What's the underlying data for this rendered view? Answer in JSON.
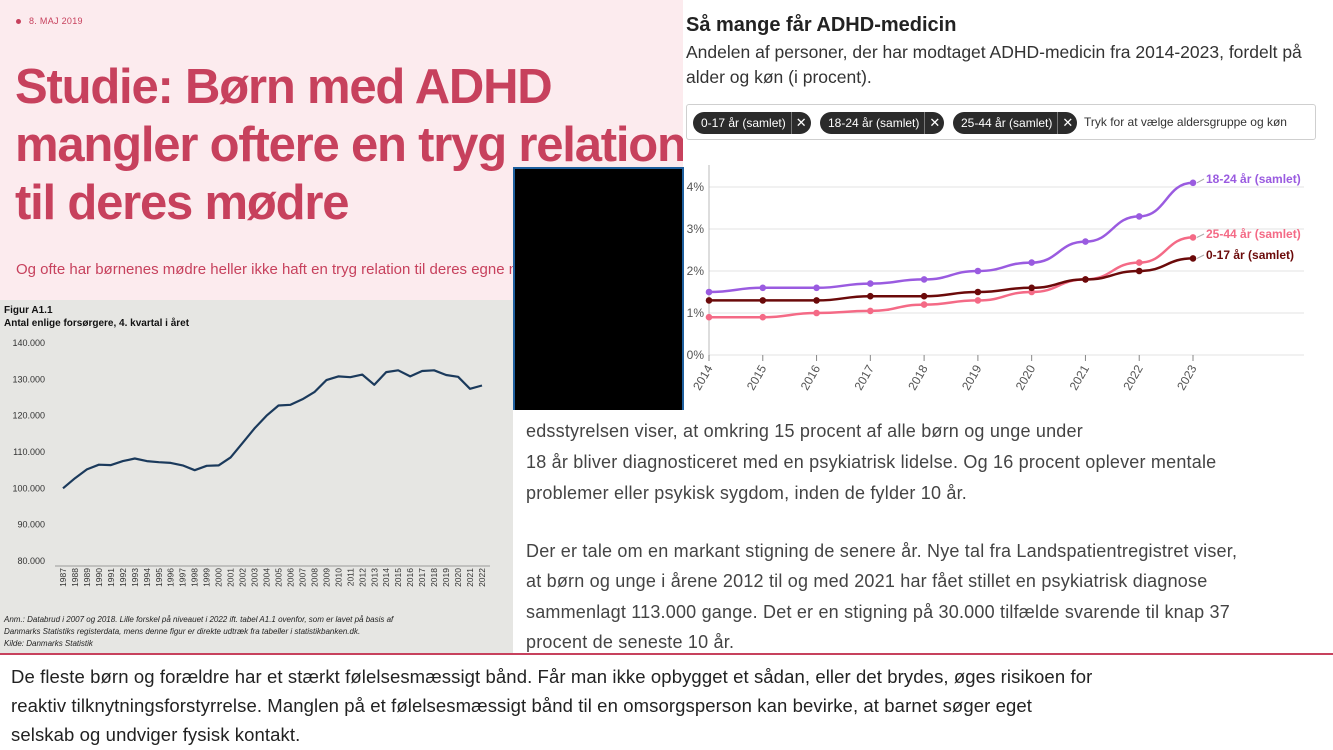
{
  "article": {
    "date": "8. MAJ 2019",
    "headline": "Studie: Børn med ADHD mangler oftere en tryg relation til deres mødre",
    "lede": "Og ofte har børnenes mødre heller ikke haft en tryg relation til deres egne mødre."
  },
  "figure_a11": {
    "title": "Figur A1.1",
    "subtitle": "Antal enlige forsørgere, 4. kvartal i året",
    "note_line1": "Anm.: Databrud i 2007 og 2018. Lille forskel på niveauet i 2022 ift. tabel A1.1 ovenfor, som er lavet på basis af",
    "note_line2": "Danmarks Statistiks registerdata, mens denne figur er direkte udtræk fra tabeller i statistikbanken.dk.",
    "note_line3": "Kilde: Danmarks Statistik",
    "line_color": "#1b3a5c"
  },
  "adhd": {
    "title": "Så mange får ADHD-medicin",
    "subtitle": "Andelen af personer, der har modtaget ADHD-medicin fra 2014-2023, fordelt på alder og køn (i procent).",
    "filters": [
      "0-17 år (samlet)",
      "18-24 år (samlet)",
      "25-44 år (samlet)"
    ],
    "remove_glyph": "✕",
    "filter_hint": "Tryk for at vælge aldersgruppe og køn"
  },
  "body": {
    "p1_line1": "edsstyrelsen viser, at omkring 15 procent af alle børn og unge under",
    "p1_line2": "18 år bliver diagnosticeret med en psykiatrisk lidelse. Og 16 procent oplever mentale",
    "p1_line3": "problemer eller psykisk sygdom, inden de fylder 10 år.",
    "p2_line1": "Der er tale om en markant stigning de senere år. Nye tal fra Landspatientregistret viser,",
    "p2_line2": "at børn og unge i årene 2012 til og med 2021 har fået stillet en psykiatrisk diagnose",
    "p2_line3": "sammenlagt 113.000 gange. Det er en stigning på 30.000 tilfælde svarende til knap 37",
    "p2_line4": "procent de seneste 10 år."
  },
  "bottom": {
    "line1": "De fleste børn og forældre har et stærkt følelsesmæssigt bånd. Får man ikke opbygget et sådan, eller det brydes, øges risikoen for",
    "line2": "reaktiv tilknytningsforstyrrelse. Manglen på et følelsesmæssigt bånd til en omsorgsperson kan bevirke, at barnet søger eget",
    "line3": "selskab og undviger fysisk kontakt."
  },
  "chart_data": [
    {
      "type": "line",
      "title": "Antal enlige forsørgere, 4. kvartal i året",
      "categories": [
        "1987",
        "1988",
        "1989",
        "1990",
        "1991",
        "1992",
        "1993",
        "1994",
        "1995",
        "1996",
        "1997",
        "1998",
        "1999",
        "2000",
        "2001",
        "2002",
        "2003",
        "2004",
        "2005",
        "2006",
        "2007",
        "2008",
        "2009",
        "2010",
        "2011",
        "2012",
        "2013",
        "2014",
        "2015",
        "2016",
        "2017",
        "2018",
        "2019",
        "2020",
        "2021",
        "2022"
      ],
      "series": [
        {
          "values": [
            100000,
            102800,
            105200,
            106500,
            106400,
            107500,
            108200,
            107500,
            107200,
            107000,
            106300,
            105000,
            106200,
            106300,
            108500,
            112500,
            116500,
            120000,
            122800,
            123000,
            124500,
            126500,
            129800,
            130800,
            130600,
            131300,
            128500,
            132000,
            132500,
            130800,
            132300,
            132500,
            131200,
            130700,
            127400,
            128300
          ]
        }
      ],
      "xlabel": "",
      "ylabel": "",
      "ylim": [
        80000,
        140000
      ],
      "yticks": [
        80000,
        90000,
        100000,
        110000,
        120000,
        130000,
        140000
      ],
      "ytick_labels": [
        "80.000",
        "90.000",
        "100.000",
        "110.000",
        "120.000",
        "130.000",
        "140.000"
      ],
      "grid": false,
      "legend": "none"
    },
    {
      "type": "line",
      "title": "Så mange får ADHD-medicin",
      "categories": [
        "2014",
        "2015",
        "2016",
        "2017",
        "2018",
        "2019",
        "2020",
        "2021",
        "2022",
        "2023"
      ],
      "series": [
        {
          "name": "18-24 år (samlet)",
          "color": "#9a5be0",
          "values": [
            1.5,
            1.6,
            1.6,
            1.7,
            1.8,
            2.0,
            2.2,
            2.7,
            3.3,
            4.1
          ]
        },
        {
          "name": "25-44 år (samlet)",
          "color": "#f46a86",
          "values": [
            0.9,
            0.9,
            1.0,
            1.05,
            1.2,
            1.3,
            1.5,
            1.8,
            2.2,
            2.8
          ]
        },
        {
          "name": "0-17 år (samlet)",
          "color": "#6b0a0a",
          "values": [
            1.3,
            1.3,
            1.3,
            1.4,
            1.4,
            1.5,
            1.6,
            1.8,
            2.0,
            2.3
          ]
        }
      ],
      "ylim": [
        0,
        4
      ],
      "yticks": [
        0,
        1,
        2,
        3,
        4
      ],
      "ytick_labels": [
        "0%",
        "1%",
        "2%",
        "3%",
        "4%"
      ],
      "grid": true,
      "legend": "end-of-line labels"
    }
  ]
}
